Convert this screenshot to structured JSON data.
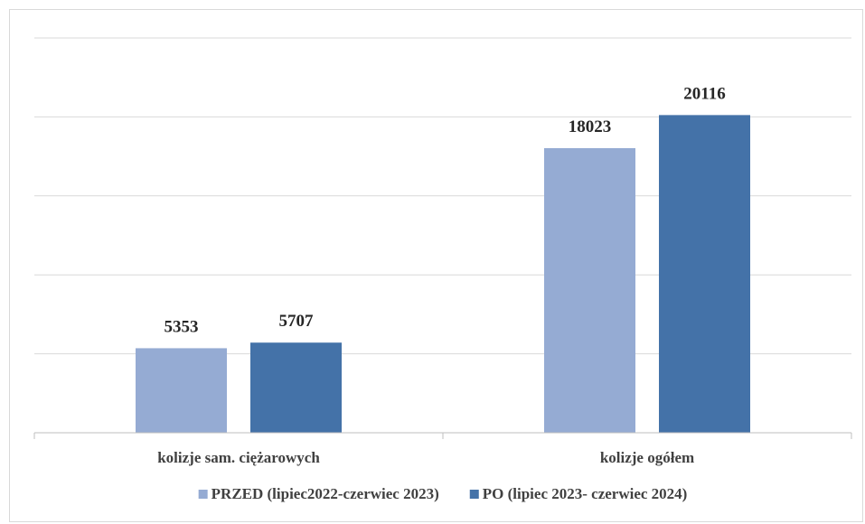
{
  "chart_data": {
    "type": "bar",
    "categories": [
      "kolizje sam. ciężarowych",
      "kolizje ogółem"
    ],
    "series": [
      {
        "name": "PRZED (lipiec2022-czerwiec 2023)",
        "values": [
          5353,
          18023
        ],
        "color": "#95abd3"
      },
      {
        "name": "PO (lipiec 2023- czerwiec 2024)",
        "values": [
          5707,
          20116
        ],
        "color": "#4472a8"
      }
    ],
    "ylim": [
      0,
      25000
    ],
    "yticks": [
      0,
      5000,
      10000,
      15000,
      20000,
      25000
    ],
    "y_tick_labels_visible": false,
    "grid": true,
    "legend": "bottom",
    "data_labels": true,
    "title": "",
    "xlabel": "",
    "ylabel": ""
  }
}
